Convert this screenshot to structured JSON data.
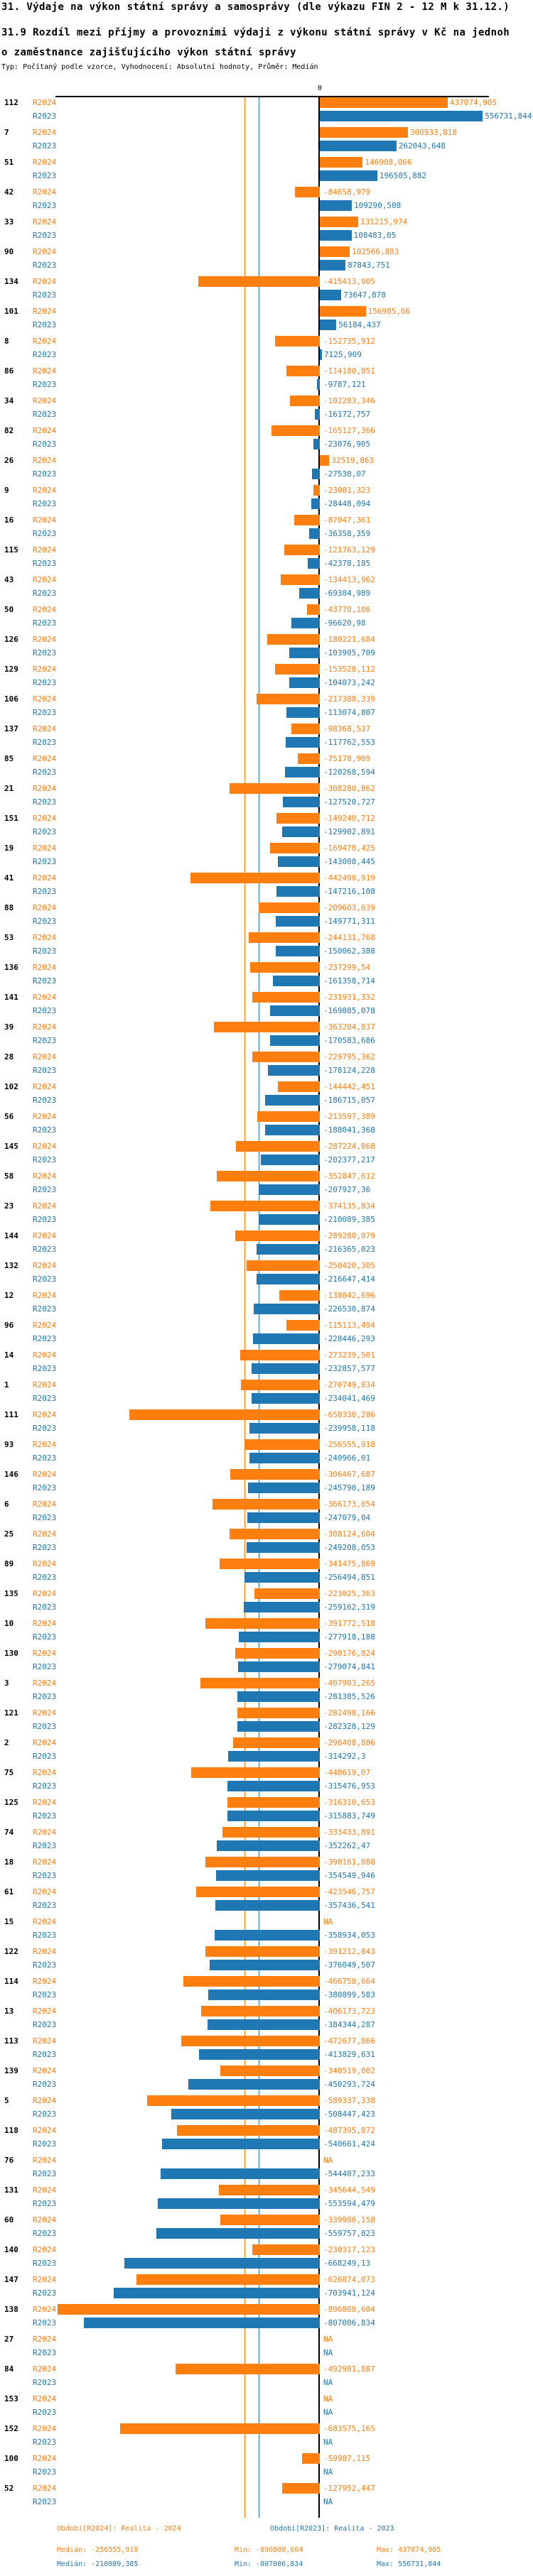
{
  "header": {
    "title": "31. Výdaje na výkon státní správy a samosprávy (dle výkazu FIN 2 - 12 M k 31.12.)",
    "subtitle_line1": "31.9 Rozdíl mezi příjmy a provozními výdaji z výkonu státní správy v Kč na jednoh",
    "subtitle_line2": "o zaměstnance zajišťujícího výkon státní správy",
    "meta": "Typ: Počítaný podle vzorce, Vyhodnocení: Absolutní hodnoty, Průměr: Medián"
  },
  "axis": {
    "zero_label": "0"
  },
  "colors": {
    "r2024": "#ff7f0e",
    "r2023": "#1f77b4",
    "axis": "#000000"
  },
  "chart_data": {
    "type": "bar",
    "orientation": "horizontal",
    "title": "31.9 Rozdíl mezi příjmy a provozními výdaji z výkonu státní správy v Kč na jednoho zaměstnance zajišťujícího výkon státní správy",
    "series_names": [
      "R2024",
      "R2023"
    ],
    "decimal_separator": ",",
    "na_label": "NA",
    "value_axis": {
      "zero_tick": "0",
      "approx_range": [
        -900000,
        560000
      ],
      "gridlines": false
    },
    "legend_position": "bottom",
    "medians": {
      "r2024": -256555.918,
      "r2023": -210089.385
    },
    "stats": {
      "r2024": {
        "median": "-256555,918",
        "min": "-896808,604",
        "max": "437074,905"
      },
      "r2023": {
        "median": "-210089,385",
        "min": "-807006,834",
        "max": "556731,844"
      }
    },
    "groups": [
      {
        "id": "112",
        "r2024": "437074,905",
        "r2023": "556731,844"
      },
      {
        "id": "7",
        "r2024": "300933,818",
        "r2023": "262043,648"
      },
      {
        "id": "51",
        "r2024": "146908,066",
        "r2023": "196505,882"
      },
      {
        "id": "42",
        "r2024": "-84658,979",
        "r2023": "109290,508"
      },
      {
        "id": "33",
        "r2024": "131215,974",
        "r2023": "108483,05"
      },
      {
        "id": "90",
        "r2024": "102566,883",
        "r2023": "87843,751"
      },
      {
        "id": "134",
        "r2024": "-415413,905",
        "r2023": "73647,878"
      },
      {
        "id": "101",
        "r2024": "156985,66",
        "r2023": "56184,437"
      },
      {
        "id": "8",
        "r2024": "-152735,912",
        "r2023": "7125,909"
      },
      {
        "id": "86",
        "r2024": "-114180,851",
        "r2023": "-9787,121"
      },
      {
        "id": "34",
        "r2024": "-102283,346",
        "r2023": "-16172,757"
      },
      {
        "id": "82",
        "r2024": "-165127,366",
        "r2023": "-23076,905"
      },
      {
        "id": "26",
        "r2024": "32519,863",
        "r2023": "-27530,07"
      },
      {
        "id": "9",
        "r2024": "-23081,323",
        "r2023": "-28448,094"
      },
      {
        "id": "16",
        "r2024": "-87047,361",
        "r2023": "-36358,359"
      },
      {
        "id": "115",
        "r2024": "-121763,129",
        "r2023": "-42378,185"
      },
      {
        "id": "43",
        "r2024": "-134413,962",
        "r2023": "-69304,989"
      },
      {
        "id": "50",
        "r2024": "-43770,106",
        "r2023": "-96620,98"
      },
      {
        "id": "126",
        "r2024": "-180221,684",
        "r2023": "-103905,709"
      },
      {
        "id": "129",
        "r2024": "-153528,112",
        "r2023": "-104073,242"
      },
      {
        "id": "106",
        "r2024": "-217388,339",
        "r2023": "-113074,807"
      },
      {
        "id": "137",
        "r2024": "-98368,537",
        "r2023": "-117762,553"
      },
      {
        "id": "85",
        "r2024": "-75178,909",
        "r2023": "-120268,594"
      },
      {
        "id": "21",
        "r2024": "-308280,862",
        "r2023": "-127520,727"
      },
      {
        "id": "151",
        "r2024": "-149240,712",
        "r2023": "-129902,891"
      },
      {
        "id": "19",
        "r2024": "-169478,425",
        "r2023": "-143008,445"
      },
      {
        "id": "41",
        "r2024": "-442498,919",
        "r2023": "-147216,108"
      },
      {
        "id": "88",
        "r2024": "-209603,639",
        "r2023": "-149771,311"
      },
      {
        "id": "53",
        "r2024": "-244131,768",
        "r2023": "-150062,388"
      },
      {
        "id": "136",
        "r2024": "-237299,54",
        "r2023": "-161358,714"
      },
      {
        "id": "141",
        "r2024": "-231931,332",
        "r2023": "-169885,078"
      },
      {
        "id": "39",
        "r2024": "-363204,837",
        "r2023": "-170583,686"
      },
      {
        "id": "28",
        "r2024": "-229795,362",
        "r2023": "-178124,228"
      },
      {
        "id": "102",
        "r2024": "-144442,451",
        "r2023": "-186715,057"
      },
      {
        "id": "56",
        "r2024": "-213597,389",
        "r2023": "-188041,368"
      },
      {
        "id": "145",
        "r2024": "-287224,068",
        "r2023": "-202377,217"
      },
      {
        "id": "58",
        "r2024": "-352847,612",
        "r2023": "-207927,36"
      },
      {
        "id": "23",
        "r2024": "-374135,834",
        "r2023": "-210089,385"
      },
      {
        "id": "144",
        "r2024": "-289280,079",
        "r2023": "-216365,023"
      },
      {
        "id": "132",
        "r2024": "-250420,305",
        "r2023": "-216647,414"
      },
      {
        "id": "12",
        "r2024": "-138042,696",
        "r2023": "-226530,874"
      },
      {
        "id": "96",
        "r2024": "-115113,494",
        "r2023": "-228446,293"
      },
      {
        "id": "14",
        "r2024": "-273239,501",
        "r2023": "-232857,577"
      },
      {
        "id": "1",
        "r2024": "-270749,834",
        "r2023": "-234041,469"
      },
      {
        "id": "111",
        "r2024": "-650330,286",
        "r2023": "-239958,118"
      },
      {
        "id": "93",
        "r2024": "-256555,918",
        "r2023": "-240966,01"
      },
      {
        "id": "146",
        "r2024": "-306467,687",
        "r2023": "-245790,189"
      },
      {
        "id": "6",
        "r2024": "-366173,054",
        "r2023": "-247079,04"
      },
      {
        "id": "25",
        "r2024": "-308124,604",
        "r2023": "-249208,053"
      },
      {
        "id": "89",
        "r2024": "-341475,869",
        "r2023": "-256494,851"
      },
      {
        "id": "135",
        "r2024": "-223025,363",
        "r2023": "-259162,319"
      },
      {
        "id": "10",
        "r2024": "-391772,518",
        "r2023": "-277918,188"
      },
      {
        "id": "130",
        "r2024": "-290176,824",
        "r2023": "-279074,841"
      },
      {
        "id": "3",
        "r2024": "-407903,265",
        "r2023": "-281385,526"
      },
      {
        "id": "121",
        "r2024": "-282498,166",
        "r2023": "-282328,129"
      },
      {
        "id": "2",
        "r2024": "-296408,886",
        "r2023": "-314292,3"
      },
      {
        "id": "75",
        "r2024": "-440619,07",
        "r2023": "-315476,953"
      },
      {
        "id": "125",
        "r2024": "-316310,653",
        "r2023": "-315883,749"
      },
      {
        "id": "74",
        "r2024": "-333433,891",
        "r2023": "-352262,47"
      },
      {
        "id": "18",
        "r2024": "-390161,088",
        "r2023": "-354549,946"
      },
      {
        "id": "61",
        "r2024": "-423546,757",
        "r2023": "-357436,541"
      },
      {
        "id": "15",
        "r2024": "NA",
        "r2023": "-358934,053"
      },
      {
        "id": "122",
        "r2024": "-391212,843",
        "r2023": "-376049,507"
      },
      {
        "id": "114",
        "r2024": "-466758,664",
        "r2023": "-380899,583"
      },
      {
        "id": "13",
        "r2024": "-406173,723",
        "r2023": "-384344,287"
      },
      {
        "id": "113",
        "r2024": "-472677,866",
        "r2023": "-413829,631"
      },
      {
        "id": "139",
        "r2024": "-340519,002",
        "r2023": "-450293,724"
      },
      {
        "id": "5",
        "r2024": "-589337,338",
        "r2023": "-508447,423"
      },
      {
        "id": "118",
        "r2024": "-487395,872",
        "r2023": "-540661,424"
      },
      {
        "id": "76",
        "r2024": "NA",
        "r2023": "-544407,233"
      },
      {
        "id": "131",
        "r2024": "-345644,549",
        "r2023": "-553594,479"
      },
      {
        "id": "60",
        "r2024": "-339986,158",
        "r2023": "-559757,823"
      },
      {
        "id": "140",
        "r2024": "-230317,123",
        "r2023": "-668249,13"
      },
      {
        "id": "147",
        "r2024": "-626874,073",
        "r2023": "-703941,124"
      },
      {
        "id": "138",
        "r2024": "-896808,604",
        "r2023": "-807006,834"
      },
      {
        "id": "27",
        "r2024": "NA",
        "r2023": "NA"
      },
      {
        "id": "84",
        "r2024": "-492981,887",
        "r2023": "NA"
      },
      {
        "id": "153",
        "r2024": "NA",
        "r2023": "NA"
      },
      {
        "id": "152",
        "r2024": "-683575,165",
        "r2023": "NA"
      },
      {
        "id": "100",
        "r2024": "-59987,115",
        "r2023": "NA"
      },
      {
        "id": "52",
        "r2024": "-127952,447",
        "r2023": "NA"
      }
    ]
  },
  "legend": {
    "r2024_period": "Období[R2024]: Realita - 2024",
    "r2023_period": "Období[R2023]: Realita - 2023",
    "r2024_median": "Medián: -256555,918",
    "r2024_min": "Min: -896808,604",
    "r2024_max": "Max: 437074,905",
    "r2023_median": "Medián: -210089,385",
    "r2023_min": "Min: -807006,834",
    "r2023_max": "Max: 556731,844"
  }
}
